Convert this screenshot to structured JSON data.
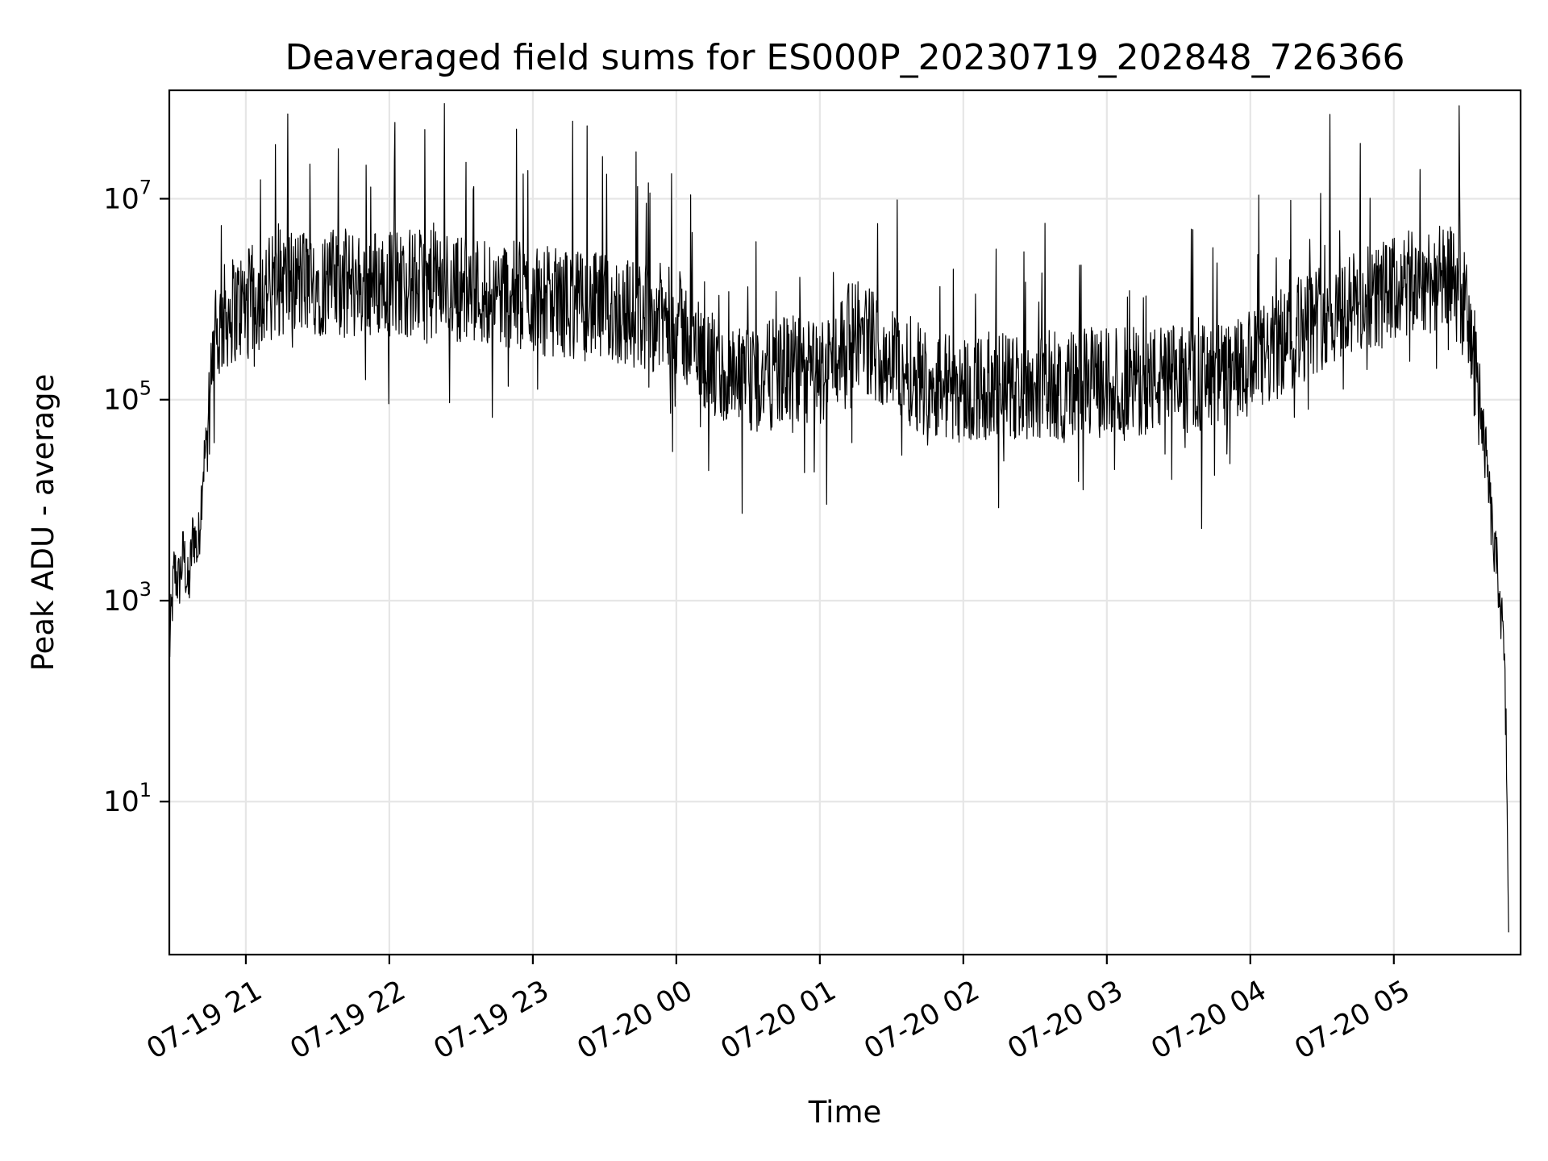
{
  "chart_data": {
    "type": "line",
    "title": "Deaveraged field sums for ES000P_20230719_202848_726366",
    "xlabel": "Time",
    "ylabel": "Peak ADU - average",
    "yscale": "log",
    "ylim": [
      0.3,
      120000000
    ],
    "xlim": [
      "2023-07-19 20:28",
      "2023-07-20 05:53"
    ],
    "grid": true,
    "x_ticks": [
      {
        "value": "2023-07-19 21:00",
        "label": "07-19 21"
      },
      {
        "value": "2023-07-19 22:00",
        "label": "07-19 22"
      },
      {
        "value": "2023-07-19 23:00",
        "label": "07-19 23"
      },
      {
        "value": "2023-07-20 00:00",
        "label": "07-20 00"
      },
      {
        "value": "2023-07-20 01:00",
        "label": "07-20 01"
      },
      {
        "value": "2023-07-20 02:00",
        "label": "07-20 02"
      },
      {
        "value": "2023-07-20 03:00",
        "label": "07-20 03"
      },
      {
        "value": "2023-07-20 04:00",
        "label": "07-20 04"
      },
      {
        "value": "2023-07-20 05:00",
        "label": "07-20 05"
      }
    ],
    "y_ticks": [
      {
        "value": 10,
        "base": "10",
        "exp": "1"
      },
      {
        "value": 1000,
        "base": "10",
        "exp": "3"
      },
      {
        "value": 100000,
        "base": "10",
        "exp": "5"
      },
      {
        "value": 10000000,
        "base": "10",
        "exp": "7"
      }
    ],
    "series": [
      {
        "color": "#000000",
        "x": [
          "2023-07-19 20:28",
          "2023-07-19 20:30",
          "2023-07-19 20:32",
          "2023-07-19 20:34",
          "2023-07-19 20:36",
          "2023-07-19 20:38",
          "2023-07-19 20:40",
          "2023-07-19 20:42",
          "2023-07-19 20:44",
          "2023-07-19 20:46",
          "2023-07-19 20:48",
          "2023-07-19 20:50",
          "2023-07-19 20:52",
          "2023-07-19 20:55",
          "2023-07-19 21:00",
          "2023-07-19 21:15",
          "2023-07-19 21:30",
          "2023-07-19 21:45",
          "2023-07-19 22:00",
          "2023-07-19 22:15",
          "2023-07-19 22:30",
          "2023-07-19 22:45",
          "2023-07-19 23:00",
          "2023-07-19 23:15",
          "2023-07-19 23:30",
          "2023-07-19 23:45",
          "2023-07-20 00:00",
          "2023-07-20 00:10",
          "2023-07-20 00:20",
          "2023-07-20 00:30",
          "2023-07-20 00:45",
          "2023-07-20 01:00",
          "2023-07-20 01:15",
          "2023-07-20 01:30",
          "2023-07-20 01:45",
          "2023-07-20 02:00",
          "2023-07-20 02:30",
          "2023-07-20 03:00",
          "2023-07-20 03:30",
          "2023-07-20 03:50",
          "2023-07-20 04:00",
          "2023-07-20 04:15",
          "2023-07-20 04:30",
          "2023-07-20 04:45",
          "2023-07-20 05:00",
          "2023-07-20 05:15",
          "2023-07-20 05:25",
          "2023-07-20 05:30",
          "2023-07-20 05:33",
          "2023-07-20 05:36",
          "2023-07-20 05:39",
          "2023-07-20 05:42",
          "2023-07-20 05:44",
          "2023-07-20 05:46",
          "2023-07-20 05:47",
          "2023-07-20 05:48"
        ],
        "values": [
          300,
          2000,
          1500,
          3000,
          1200,
          5000,
          3000,
          20000,
          40000,
          150000,
          400000,
          600000,
          700000,
          800000,
          900000,
          1500000,
          1500000,
          1400000,
          1500000,
          1400000,
          1300000,
          1200000,
          1000000,
          900000,
          800000,
          700000,
          600000,
          300000,
          150000,
          140000,
          200000,
          180000,
          500000,
          250000,
          150000,
          130000,
          140000,
          150000,
          160000,
          170000,
          200000,
          400000,
          700000,
          900000,
          1200000,
          1600000,
          1500000,
          800000,
          300000,
          100000,
          20000,
          3000,
          1500,
          300,
          40,
          0.5
        ]
      }
    ]
  }
}
